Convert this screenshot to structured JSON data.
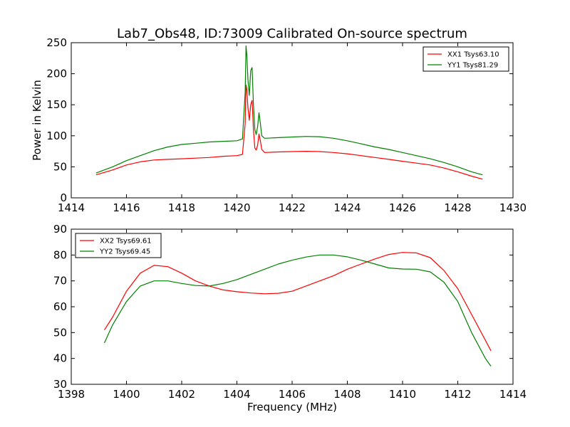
{
  "figure": {
    "title": "Lab7_Obs48, ID:73009 Calibrated On-source spectrum"
  },
  "colors": {
    "red": "#ff0000",
    "green": "#008000"
  },
  "chart_data": [
    {
      "type": "line",
      "xlim": [
        1414,
        1430
      ],
      "ylim": [
        0,
        250
      ],
      "xticks": [
        1414,
        1416,
        1418,
        1420,
        1422,
        1424,
        1426,
        1428,
        1430
      ],
      "yticks": [
        0,
        50,
        100,
        150,
        200,
        250
      ],
      "xlabel": "",
      "ylabel": "Power in Kelvin",
      "grid": false,
      "legend_position": "top-right",
      "series": [
        {
          "name": "XX1 Tsys63.10",
          "color": "#ff0000",
          "x": [
            1414.9,
            1415.5,
            1416.0,
            1416.5,
            1417.0,
            1417.5,
            1418.0,
            1418.5,
            1419.0,
            1419.5,
            1420.0,
            1420.2,
            1420.3,
            1420.33,
            1420.36,
            1420.4,
            1420.45,
            1420.5,
            1420.55,
            1420.6,
            1420.65,
            1420.7,
            1420.75,
            1420.8,
            1420.85,
            1420.9,
            1421.0,
            1421.5,
            1422.0,
            1422.5,
            1423.0,
            1423.5,
            1424.0,
            1424.5,
            1425.0,
            1425.5,
            1426.0,
            1426.5,
            1427.0,
            1427.5,
            1428.0,
            1428.5,
            1428.9
          ],
          "y": [
            37,
            45,
            53,
            58,
            61,
            62,
            63,
            64,
            65,
            67,
            68,
            70,
            120,
            182,
            175,
            145,
            125,
            150,
            157,
            110,
            80,
            77,
            85,
            103,
            92,
            78,
            73,
            74,
            74.5,
            75,
            74.5,
            73,
            71,
            68,
            65,
            62,
            59,
            56,
            53,
            48,
            42,
            35,
            30
          ]
        },
        {
          "name": "YY1 Tsys81.29",
          "color": "#008000",
          "x": [
            1414.9,
            1415.5,
            1416.0,
            1416.5,
            1417.0,
            1417.5,
            1418.0,
            1418.5,
            1419.0,
            1419.5,
            1420.0,
            1420.2,
            1420.3,
            1420.33,
            1420.36,
            1420.4,
            1420.45,
            1420.5,
            1420.55,
            1420.6,
            1420.65,
            1420.7,
            1420.75,
            1420.8,
            1420.85,
            1420.9,
            1421.0,
            1421.5,
            1422.0,
            1422.5,
            1423.0,
            1423.5,
            1424.0,
            1424.5,
            1425.0,
            1425.5,
            1426.0,
            1426.5,
            1427.0,
            1427.5,
            1428.0,
            1428.5,
            1428.9
          ],
          "y": [
            40,
            50,
            60,
            68,
            76,
            82,
            86,
            88,
            90,
            91,
            92,
            95,
            170,
            245,
            230,
            190,
            165,
            205,
            210,
            150,
            110,
            102,
            115,
            137,
            120,
            100,
            96,
            97,
            98,
            99,
            98.5,
            96,
            92,
            87,
            82,
            78,
            73,
            68,
            63,
            57,
            50,
            42,
            37
          ]
        }
      ]
    },
    {
      "type": "line",
      "xlim": [
        1398,
        1414
      ],
      "ylim": [
        30,
        90
      ],
      "xticks": [
        1398,
        1400,
        1402,
        1404,
        1406,
        1408,
        1410,
        1412,
        1414
      ],
      "yticks": [
        30,
        40,
        50,
        60,
        70,
        80,
        90
      ],
      "xlabel": "Frequency (MHz)",
      "ylabel": "",
      "grid": false,
      "legend_position": "top-left",
      "series": [
        {
          "name": "XX2 Tsys69.61",
          "color": "#ff0000",
          "x": [
            1399.2,
            1399.5,
            1400.0,
            1400.5,
            1401.0,
            1401.5,
            1402.0,
            1402.5,
            1403.0,
            1403.5,
            1404.0,
            1404.5,
            1405.0,
            1405.5,
            1406.0,
            1406.5,
            1407.0,
            1407.5,
            1408.0,
            1408.5,
            1409.0,
            1409.5,
            1410.0,
            1410.5,
            1411.0,
            1411.5,
            1412.0,
            1412.5,
            1413.0,
            1413.2
          ],
          "y": [
            51,
            56,
            66,
            73,
            76,
            75.5,
            73,
            70,
            68,
            66.5,
            65.8,
            65.3,
            65,
            65.2,
            66,
            68,
            70,
            72,
            74.5,
            76.5,
            78.5,
            80.2,
            81,
            80.8,
            79,
            74,
            67,
            57,
            47,
            43
          ]
        },
        {
          "name": "YY2 Tsys69.45",
          "color": "#008000",
          "x": [
            1399.2,
            1399.5,
            1400.0,
            1400.5,
            1401.0,
            1401.5,
            1402.0,
            1402.5,
            1403.0,
            1403.5,
            1404.0,
            1404.5,
            1405.0,
            1405.5,
            1406.0,
            1406.5,
            1407.0,
            1407.5,
            1408.0,
            1408.5,
            1409.0,
            1409.5,
            1410.0,
            1410.5,
            1411.0,
            1411.5,
            1412.0,
            1412.5,
            1413.0,
            1413.2
          ],
          "y": [
            46,
            53,
            62,
            68,
            70,
            70,
            69,
            68.2,
            68,
            69,
            70.5,
            72.5,
            74.5,
            76.5,
            78,
            79.2,
            80,
            80,
            79.3,
            78,
            76.5,
            75,
            74.6,
            74.5,
            73.5,
            69.5,
            62,
            50,
            40,
            37
          ]
        }
      ]
    }
  ]
}
